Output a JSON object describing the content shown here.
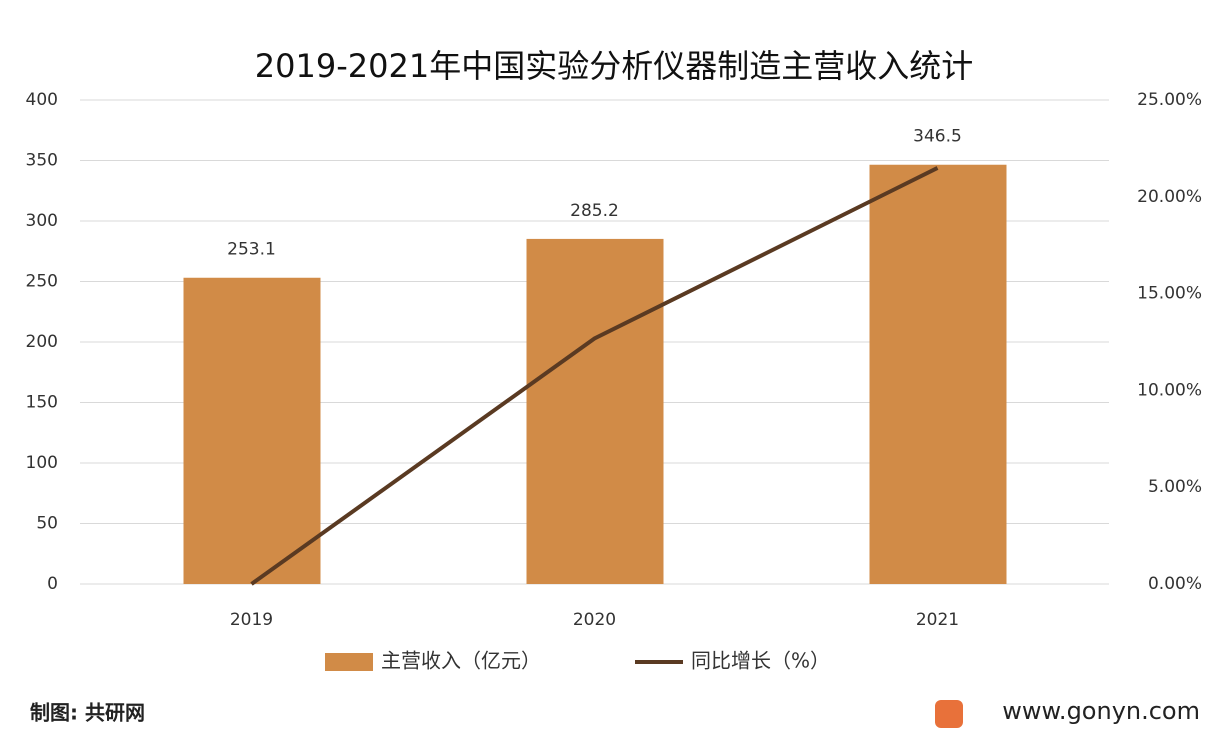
{
  "chart_data": {
    "type": "bar-line",
    "title": "2019-2021年中国实验分析仪器制造主营收入统计",
    "categories": [
      "2019",
      "2020",
      "2021"
    ],
    "series": [
      {
        "name": "主营收入（亿元）",
        "type": "bar",
        "color": "#d18b47",
        "values": [
          253.1,
          285.2,
          346.5
        ]
      },
      {
        "name": "同比增长（%）",
        "type": "line",
        "axis": "y2",
        "color": "#5a3a22",
        "values": [
          0,
          12.68,
          21.49
        ]
      }
    ],
    "ylim": [
      0,
      400
    ],
    "yticks": [
      0,
      50,
      100,
      150,
      200,
      250,
      300,
      350,
      400
    ],
    "y2lim": [
      0,
      25
    ],
    "y2ticks": [
      {
        "value": 0,
        "label": "0.00%"
      },
      {
        "value": 5,
        "label": "5.00%"
      },
      {
        "value": 10,
        "label": "10.00%"
      },
      {
        "value": 15,
        "label": "15.00%"
      },
      {
        "value": 20,
        "label": "20.00%"
      },
      {
        "value": 25,
        "label": "25.00%"
      }
    ],
    "grid": true,
    "legend": "bottom"
  },
  "footer": {
    "source": "制图: 共研网",
    "site": "www.gonyn.com"
  }
}
